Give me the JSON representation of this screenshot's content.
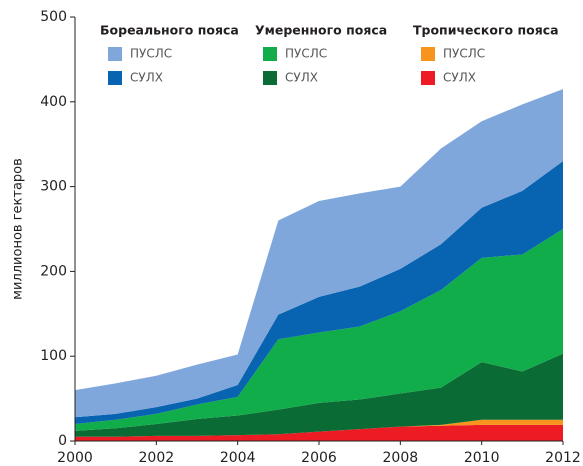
{
  "chart_data": {
    "type": "stacked_area",
    "y_label": "миллионов гектаров",
    "x": [
      2000,
      2001,
      2002,
      2003,
      2004,
      2005,
      2006,
      2007,
      2008,
      2009,
      2010,
      2011,
      2012
    ],
    "xlim": [
      2000,
      2012
    ],
    "xticks": [
      2000,
      2002,
      2004,
      2006,
      2008,
      2010,
      2012
    ],
    "ylim": [
      0,
      500
    ],
    "yticks": [
      0,
      100,
      200,
      300,
      400,
      500
    ],
    "legend_groups": [
      "Бореального пояса",
      "Умеренного пояса",
      "Тропического пояса"
    ],
    "series": [
      {
        "name": "СУЛХ",
        "color": "#ed1c24",
        "values": [
          5,
          5,
          6,
          6,
          7,
          8,
          11,
          14,
          17,
          18,
          19,
          19,
          19
        ]
      },
      {
        "name": "ПУСЛС",
        "color": "#f7941d",
        "values": [
          0,
          0,
          0,
          0,
          0,
          0,
          0,
          0,
          0,
          1,
          6,
          6,
          6
        ]
      },
      {
        "name": "СУЛХ",
        "color": "#0a6b35",
        "values": [
          7,
          10,
          14,
          20,
          23,
          29,
          34,
          35,
          39,
          44,
          68,
          57,
          78
        ]
      },
      {
        "name": "ПУСЛС",
        "color": "#12ad4b",
        "values": [
          8,
          10,
          12,
          17,
          22,
          83,
          83,
          86,
          97,
          115,
          123,
          138,
          147
        ]
      },
      {
        "name": "СУЛХ",
        "color": "#0863b0",
        "values": [
          8,
          7,
          8,
          7,
          14,
          29,
          42,
          47,
          50,
          54,
          59,
          75,
          80
        ]
      },
      {
        "name": "ПУСЛС",
        "color": "#7fa7dc",
        "values": [
          32,
          36,
          37,
          40,
          36,
          111,
          113,
          110,
          97,
          113,
          102,
          102,
          85
        ]
      }
    ]
  }
}
